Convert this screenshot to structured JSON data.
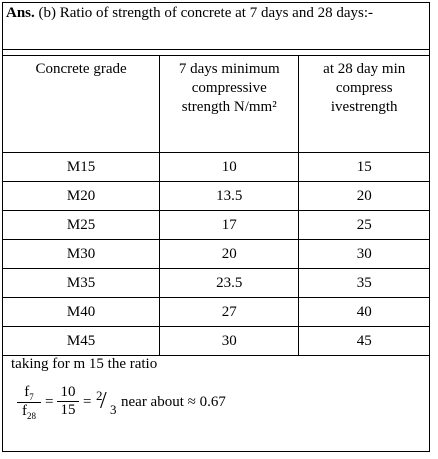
{
  "title": {
    "label": "Ans.",
    "text": "(b) Ratio of strength of concrete at 7 days and 28 days:-"
  },
  "table": {
    "headers": [
      "Concrete grade",
      "7 days minimum compressive strength N/mm²",
      "at 28 day min compress ivestrength"
    ],
    "rows": [
      [
        "M15",
        "10",
        "15"
      ],
      [
        "M20",
        "13.5",
        "20"
      ],
      [
        "M25",
        "17",
        "25"
      ],
      [
        "M30",
        "20",
        "30"
      ],
      [
        "M35",
        "23.5",
        "35"
      ],
      [
        "M40",
        "27",
        "40"
      ],
      [
        "M45",
        "30",
        "45"
      ]
    ]
  },
  "note": "taking for m 15 the ratio",
  "formula": {
    "num_symbol": "f",
    "num_sub": "7",
    "den_symbol": "f",
    "den_sub": "28",
    "equals": "=",
    "num": "10",
    "den": "15",
    "ratio_num": "2",
    "ratio_den": "3",
    "approx": "near about ≈ 0.67"
  }
}
